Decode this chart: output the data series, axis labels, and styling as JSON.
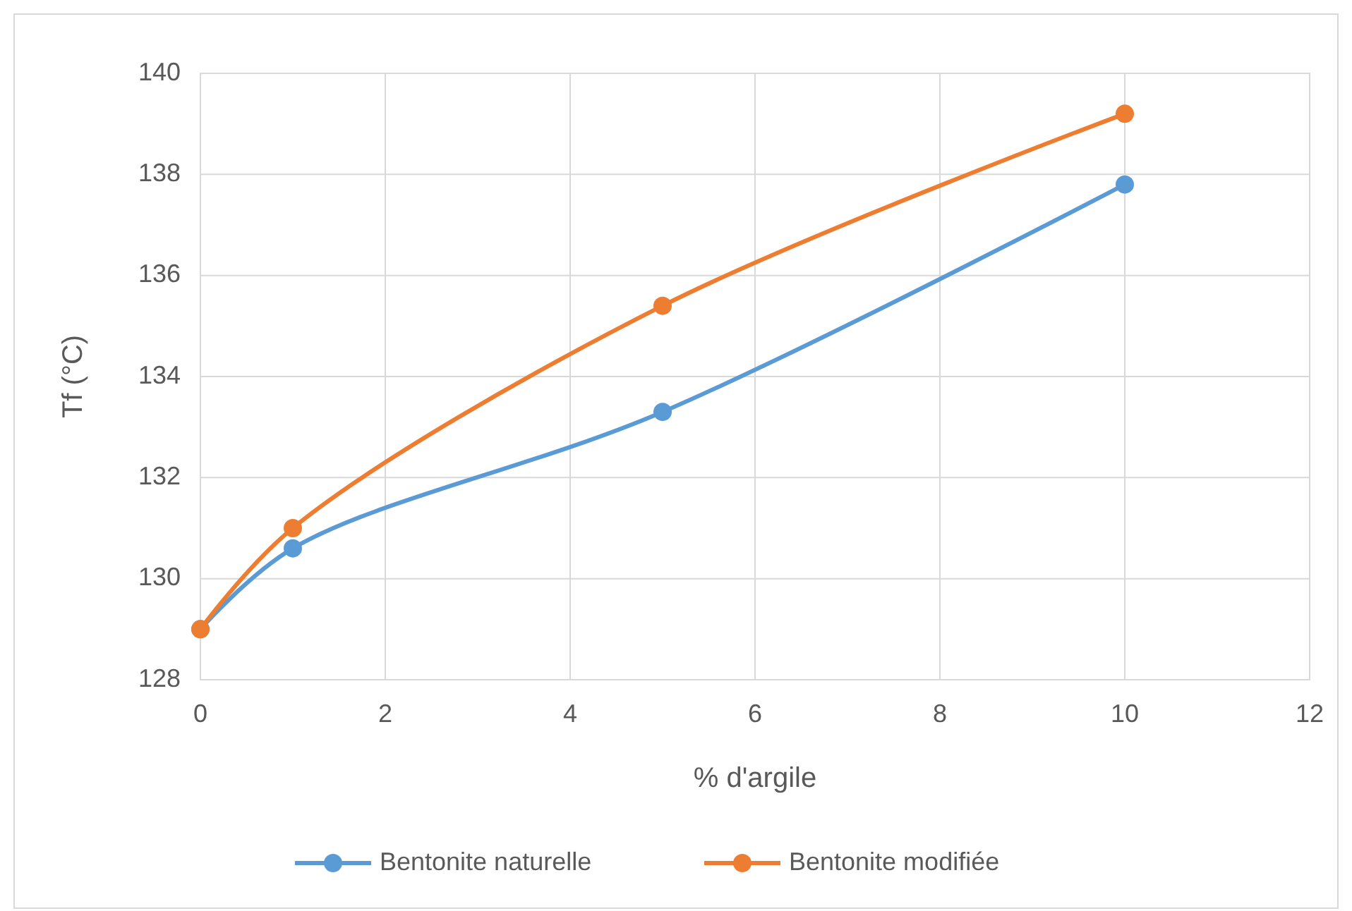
{
  "chart_data": {
    "type": "line",
    "xlabel": "% d'argile",
    "ylabel": "Tf (°C)",
    "x": [
      0,
      1,
      5,
      10
    ],
    "series": [
      {
        "name": "Bentonite naturelle",
        "color": "#5b9bd5",
        "values": [
          129,
          130.6,
          133.3,
          137.8
        ]
      },
      {
        "name": "Bentonite modifiée",
        "color": "#ed7d31",
        "values": [
          129,
          131,
          135.4,
          139.2
        ]
      }
    ],
    "xlim": [
      0,
      12
    ],
    "xticks": [
      0,
      2,
      4,
      6,
      8,
      10,
      12
    ],
    "ylim": [
      128,
      140
    ],
    "yticks": [
      128,
      130,
      132,
      134,
      136,
      138,
      140
    ],
    "grid": true,
    "legend": "bottom",
    "marker": "circle",
    "line_style": "solid"
  }
}
